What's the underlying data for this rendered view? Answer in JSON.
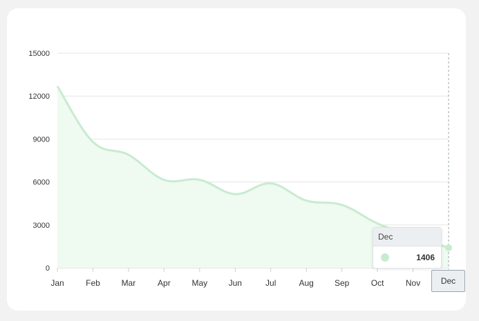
{
  "chart_data": {
    "type": "area",
    "categories": [
      "Jan",
      "Feb",
      "Mar",
      "Apr",
      "May",
      "Jun",
      "Jul",
      "Aug",
      "Sep",
      "Oct",
      "Nov",
      "Dec"
    ],
    "series": [
      {
        "values": [
          12700,
          8800,
          7900,
          6150,
          6150,
          5150,
          5900,
          4700,
          4400,
          3100,
          2200,
          1406
        ]
      }
    ],
    "y_ticks": [
      "15000",
      "12000",
      "9000",
      "6000",
      "3000",
      "0"
    ],
    "ylim": [
      0,
      15000
    ],
    "xlabel": "",
    "ylabel": "",
    "grid": true,
    "colors": {
      "line": "#c8ebd0",
      "fill": "#effaf1",
      "grid": "#e6e6e6"
    }
  },
  "tooltip": {
    "title": "Dec",
    "value": "1406"
  },
  "crosshair_label": "Dec"
}
